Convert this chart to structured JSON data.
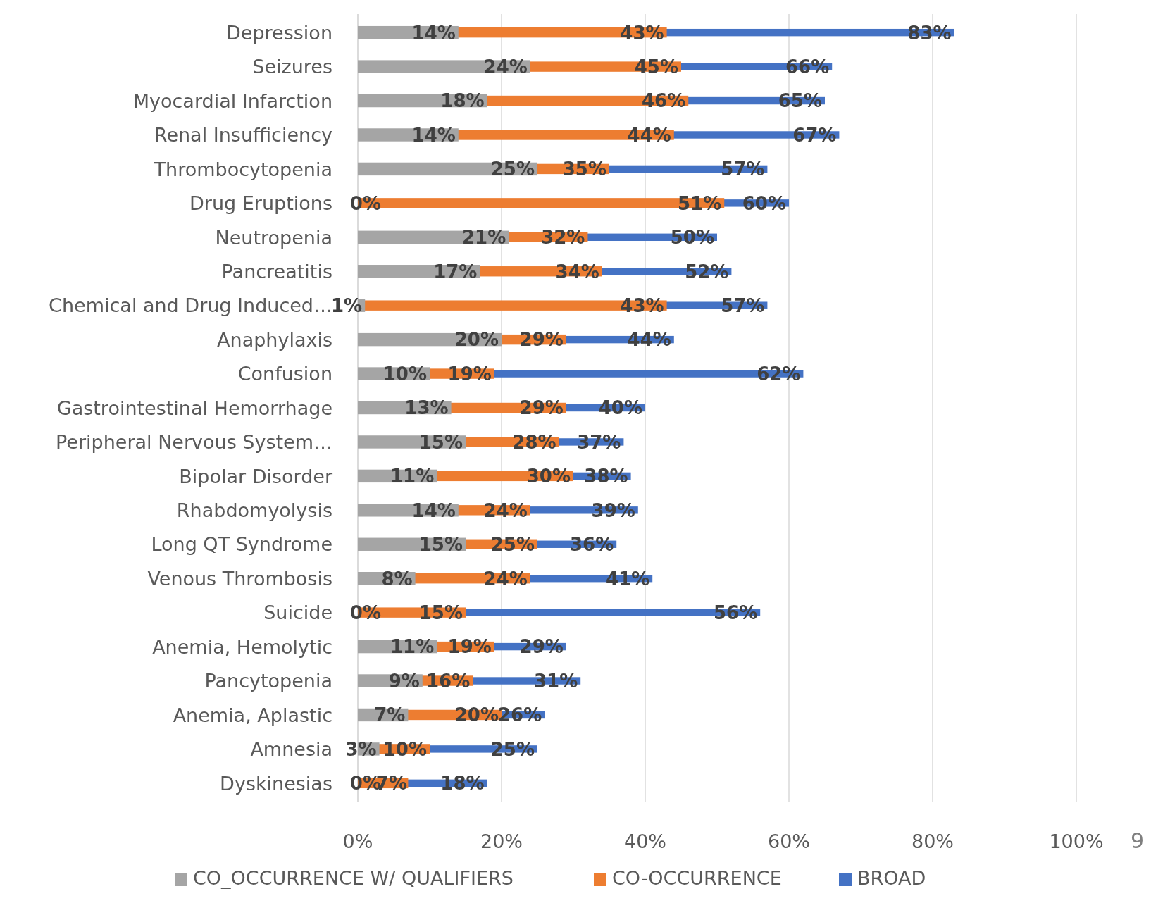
{
  "chart_data": {
    "type": "bar",
    "orientation": "horizontal",
    "categories": [
      "Depression",
      "Seizures",
      "Myocardial Infarction",
      "Renal Insufficiency",
      "Thrombocytopenia",
      "Drug Eruptions",
      "Neutropenia",
      "Pancreatitis",
      "Chemical and Drug Induced…",
      "Anaphylaxis",
      "Confusion",
      "Gastrointestinal Hemorrhage",
      "Peripheral Nervous System…",
      "Bipolar Disorder",
      "Rhabdomyolysis",
      "Long QT Syndrome",
      "Venous Thrombosis",
      "Suicide",
      "Anemia, Hemolytic",
      "Pancytopenia",
      "Anemia, Aplastic",
      "Amnesia",
      "Dyskinesias"
    ],
    "series": [
      {
        "name": "CO_OCCURRENCE W/ QUALIFIERS",
        "color": "#a5a5a5",
        "values": [
          0.14,
          0.24,
          0.18,
          0.14,
          0.25,
          0,
          0.21,
          0.17,
          0.01,
          0.2,
          0.1,
          0.13,
          0.15,
          0.11,
          0.14,
          0.15,
          0.08,
          0,
          0.11,
          0.09,
          0.07,
          0.03,
          0
        ],
        "value_labels": [
          "14%",
          "24%",
          "18%",
          "14%",
          "25%",
          "0%",
          "21%",
          "17%",
          "1%",
          "20%",
          "10%",
          "13%",
          "15%",
          "11%",
          "14%",
          "15%",
          "8%",
          "0%",
          "11%",
          "9%",
          "7%",
          "3%",
          "0%"
        ]
      },
      {
        "name": "CO-OCCURRENCE",
        "color": "#ed7d31",
        "values": [
          0.43,
          0.45,
          0.46,
          0.44,
          0.35,
          0.51,
          0.32,
          0.34,
          0.43,
          0.29,
          0.19,
          0.29,
          0.28,
          0.3,
          0.24,
          0.25,
          0.24,
          0.15,
          0.19,
          0.16,
          0.2,
          0.1,
          0.07
        ],
        "value_labels": [
          "43%",
          "45%",
          "46%",
          "44%",
          "35%",
          "51%",
          "32%",
          "34%",
          "43%",
          "29%",
          "19%",
          "29%",
          "28%",
          "30%",
          "24%",
          "25%",
          "24%",
          "15%",
          "19%",
          "16%",
          "20%",
          "10%",
          "7%"
        ]
      },
      {
        "name": "BROAD",
        "color": "#4472c4",
        "values": [
          0.83,
          0.66,
          0.65,
          0.67,
          0.57,
          0.6,
          0.5,
          0.52,
          0.57,
          0.44,
          0.62,
          0.4,
          0.37,
          0.38,
          0.39,
          0.36,
          0.41,
          0.56,
          0.29,
          0.31,
          0.26,
          0.25,
          0.18
        ],
        "value_labels": [
          "83%",
          "66%",
          "65%",
          "67%",
          "57%",
          "60%",
          "50%",
          "52%",
          "57%",
          "44%",
          "62%",
          "40%",
          "37%",
          "38%",
          "39%",
          "36%",
          "41%",
          "56%",
          "29%",
          "31%",
          "26%",
          "25%",
          "18%"
        ]
      }
    ],
    "xlim": [
      0,
      1
    ],
    "xticks": [
      {
        "value": 0,
        "label": "0%"
      },
      {
        "value": 0.2,
        "label": "20%"
      },
      {
        "value": 0.4,
        "label": "40%"
      },
      {
        "value": 0.6,
        "label": "60%"
      },
      {
        "value": 0.8,
        "label": "80%"
      },
      {
        "value": 1,
        "label": "100%"
      }
    ],
    "grid": "x",
    "legend": "bottom",
    "annotations": [
      "9"
    ]
  }
}
